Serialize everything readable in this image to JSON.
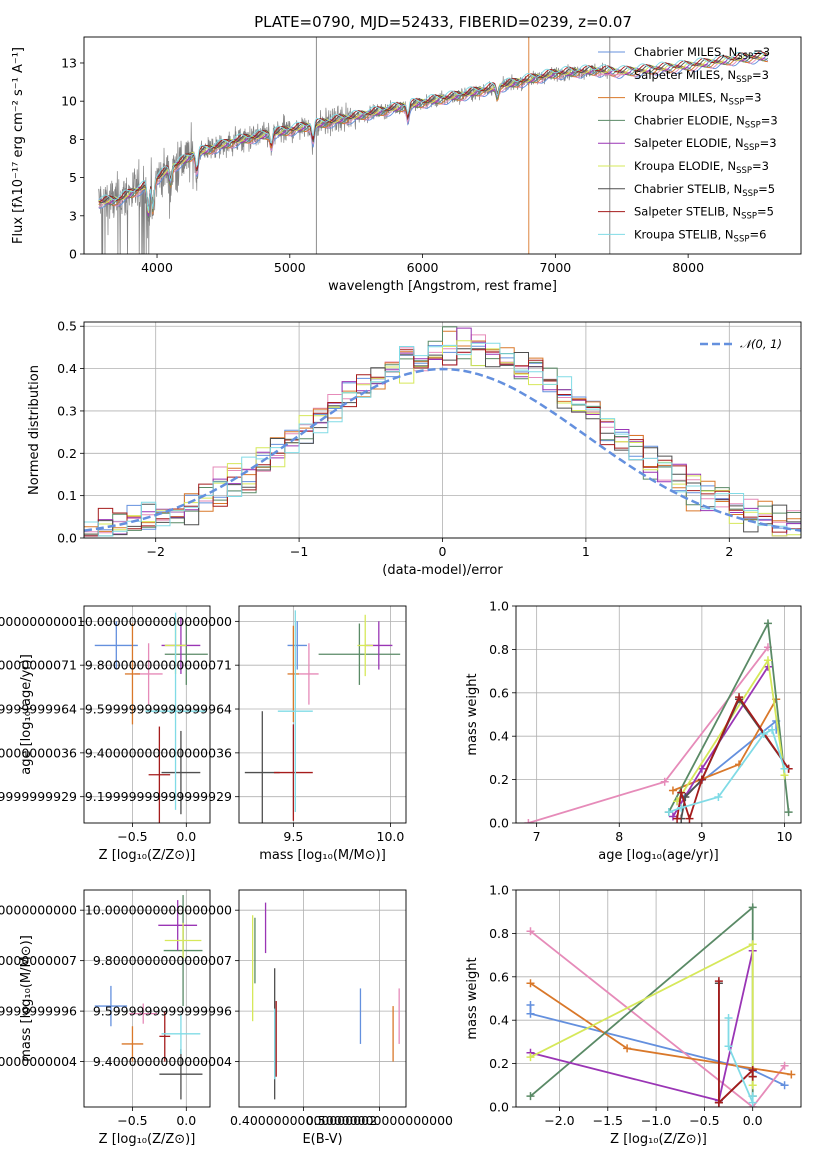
{
  "figure_title": "PLATE=0790, MJD=52433, FIBERID=0239, z=0.07",
  "models": [
    {
      "label": "Chabrier MILES, N_SSP=3",
      "lname": "Chabrier MILES, N",
      "nssp": "=3",
      "color": "#6490de"
    },
    {
      "label": "Salpeter MILES, N_SSP=3",
      "lname": "Salpeter MILES, N",
      "nssp": "=3",
      "color": "#e68bb9"
    },
    {
      "label": "Kroupa MILES, N_SSP=3",
      "lname": "Kroupa MILES, N",
      "nssp": "=3",
      "color": "#d9782a"
    },
    {
      "label": "Chabrier ELODIE, N_SSP=3",
      "lname": "Chabrier ELODIE, N",
      "nssp": "=3",
      "color": "#5a8a66"
    },
    {
      "label": "Salpeter ELODIE, N_SSP=3",
      "lname": "Salpeter ELODIE, N",
      "nssp": "=3",
      "color": "#9a35b5"
    },
    {
      "label": "Kroupa ELODIE, N_SSP=3",
      "lname": "Kroupa ELODIE, N",
      "nssp": "=3",
      "color": "#d6e85a"
    },
    {
      "label": "Chabrier STELIB, N_SSP=5",
      "lname": "Chabrier STELIB, N",
      "nssp": "=5",
      "color": "#4f4f4f"
    },
    {
      "label": "Salpeter STELIB, N_SSP=5",
      "lname": "Salpeter STELIB, N",
      "nssp": "=5",
      "color": "#a51c1c"
    },
    {
      "label": "Kroupa STELIB, N_SSP=6",
      "lname": "Kroupa STELIB, N",
      "nssp": "=6",
      "color": "#80dbe6"
    }
  ],
  "legend_sub": "SSP",
  "chart_data": [
    {
      "id": "spectrum",
      "type": "line",
      "xlabel": "wavelength [Angstrom, rest frame]",
      "ylabel": "Flux [fλ10⁻¹⁷ erg cm⁻² s⁻¹ A⁻¹]",
      "xlim": [
        3450,
        8850
      ],
      "ylim": [
        0,
        14.2
      ],
      "xticks": [
        4000,
        5000,
        6000,
        7000,
        8000
      ],
      "yticks": [
        0.0,
        2.5,
        5.0,
        7.5,
        10.0,
        12.5
      ],
      "data_color": "#808080",
      "continuum": [
        [
          3550,
          3.4
        ],
        [
          3700,
          3.5
        ],
        [
          3950,
          4.6
        ],
        [
          4100,
          5.6
        ],
        [
          4300,
          6.6
        ],
        [
          4600,
          7.4
        ],
        [
          5000,
          8.1
        ],
        [
          5500,
          9.0
        ],
        [
          6000,
          9.9
        ],
        [
          6300,
          10.4
        ],
        [
          6600,
          11.0
        ],
        [
          6800,
          11.4
        ],
        [
          7000,
          11.8
        ],
        [
          7300,
          12.0
        ],
        [
          7500,
          11.9
        ],
        [
          8000,
          12.3
        ],
        [
          8400,
          12.8
        ],
        [
          8600,
          12.9
        ]
      ]
    },
    {
      "id": "residual_hist",
      "type": "line",
      "xlabel": "(data-model)/error",
      "ylabel": "Normed distribution",
      "xlim": [
        -2.5,
        2.5
      ],
      "ylim": [
        0,
        0.51
      ],
      "xticks": [
        -2,
        -1,
        0,
        1,
        2
      ],
      "yticks": [
        0.0,
        0.1,
        0.2,
        0.3,
        0.4,
        0.5
      ],
      "reference_label": "𝒩(0, 1)",
      "reference_color": "#6490de",
      "bin_width": 0.1
    },
    {
      "id": "age_vs_Z",
      "type": "scatter",
      "xlabel": "Z [log₁₀(Z/Z⊙)]",
      "ylabel": "age  [log₁₀(age/yr)]",
      "xlim": [
        -0.95,
        0.22
      ],
      "ylim": [
        9.08,
        10.07
      ],
      "xticks": [
        -0.5,
        0.0
      ],
      "yticks": [
        9.2,
        9.4,
        9.6,
        9.8,
        10.0
      ],
      "points": [
        {
          "x": -0.65,
          "y": 9.89,
          "xerr": 0.2,
          "yerr": 0.11
        },
        {
          "x": -0.35,
          "y": 9.76,
          "xerr": 0.13,
          "yerr": 0.14
        },
        {
          "x": -0.5,
          "y": 9.76,
          "xerr": 0.07,
          "yerr": 0.23
        },
        {
          "x": 0.0,
          "y": 9.85,
          "xerr": 0.2,
          "yerr": 0.14
        },
        {
          "x": -0.05,
          "y": 9.89,
          "xerr": 0.18,
          "yerr": 0.13
        },
        {
          "x": -0.1,
          "y": 9.89,
          "xerr": 0.1,
          "yerr": 0.13
        },
        {
          "x": -0.05,
          "y": 9.31,
          "xerr": 0.18,
          "yerr": 0.19
        },
        {
          "x": -0.25,
          "y": 9.3,
          "xerr": 0.1,
          "yerr": 0.22
        },
        {
          "x": -0.1,
          "y": 9.59,
          "xerr": 0.28,
          "yerr": 0.45
        }
      ]
    },
    {
      "id": "age_vs_mass",
      "type": "scatter",
      "xlabel": "mass [log₁₀(M/M⊙)]",
      "ylabel": "",
      "xlim": [
        9.22,
        10.08
      ],
      "ylim": [
        9.08,
        10.07
      ],
      "xticks": [
        9.5,
        10.0
      ],
      "yticks": [
        9.2,
        9.4,
        9.6,
        9.8,
        10.0
      ],
      "points": [
        {
          "x": 9.52,
          "y": 9.89,
          "xerr": 0.05,
          "yerr": 0.11
        },
        {
          "x": 9.58,
          "y": 9.76,
          "xerr": 0.05,
          "yerr": 0.14
        },
        {
          "x": 9.5,
          "y": 9.76,
          "xerr": 0.03,
          "yerr": 0.22
        },
        {
          "x": 9.84,
          "y": 9.85,
          "xerr": 0.21,
          "yerr": 0.14
        },
        {
          "x": 9.94,
          "y": 9.89,
          "xerr": 0.07,
          "yerr": 0.11
        },
        {
          "x": 9.87,
          "y": 9.89,
          "xerr": 0.04,
          "yerr": 0.14
        },
        {
          "x": 9.34,
          "y": 9.31,
          "xerr": 0.09,
          "yerr": 0.28
        },
        {
          "x": 9.5,
          "y": 9.31,
          "xerr": 0.1,
          "yerr": 0.22
        },
        {
          "x": 9.51,
          "y": 9.59,
          "xerr": 0.09,
          "yerr": 0.46
        }
      ]
    },
    {
      "id": "weight_vs_age",
      "type": "line",
      "xlabel": "age  [log₁₀(age/yr)]",
      "ylabel": "mass weight",
      "xlim": [
        6.75,
        10.2
      ],
      "ylim": [
        0,
        1.0
      ],
      "xticks": [
        7,
        8,
        9,
        10
      ],
      "yticks": [
        0.0,
        0.2,
        0.4,
        0.6,
        0.8,
        1.0
      ],
      "series": [
        [
          [
            8.7,
            0.1
          ],
          [
            9.9,
            0.47
          ],
          [
            9.9,
            0.43
          ]
        ],
        [
          [
            6.9,
            0.0
          ],
          [
            8.55,
            0.19
          ],
          [
            9.8,
            0.81
          ]
        ],
        [
          [
            8.65,
            0.15
          ],
          [
            9.45,
            0.27
          ],
          [
            9.9,
            0.57
          ]
        ],
        [
          [
            8.6,
            0.05
          ],
          [
            9.8,
            0.92
          ],
          [
            10.05,
            0.05
          ]
        ],
        [
          [
            8.65,
            0.03
          ],
          [
            9.0,
            0.25
          ],
          [
            9.8,
            0.72
          ]
        ],
        [
          [
            8.7,
            0.1
          ],
          [
            9.8,
            0.75
          ],
          [
            10.0,
            0.22
          ]
        ],
        [
          [
            8.75,
            0.02
          ],
          [
            8.8,
            0.12
          ],
          [
            9.0,
            0.2
          ],
          [
            9.45,
            0.57
          ],
          [
            10.05,
            0.25
          ]
        ],
        [
          [
            8.7,
            0.02
          ],
          [
            8.75,
            0.14
          ],
          [
            8.85,
            0.02
          ],
          [
            9.0,
            0.2
          ],
          [
            9.45,
            0.58
          ],
          [
            10.05,
            0.25
          ]
        ],
        [
          [
            8.6,
            0.05
          ],
          [
            8.75,
            0.07
          ],
          [
            9.2,
            0.12
          ],
          [
            9.75,
            0.41
          ],
          [
            9.85,
            0.43
          ],
          [
            10.0,
            0.25
          ]
        ]
      ]
    },
    {
      "id": "mass_vs_Z",
      "type": "scatter",
      "xlabel": "Z [log₁₀(Z/Z⊙)]",
      "ylabel": "mass [log₁₀(M/M⊙)]",
      "xlim": [
        -0.95,
        0.22
      ],
      "ylim": [
        9.22,
        10.08
      ],
      "xticks": [
        -0.5,
        0.0
      ],
      "yticks": [
        9.4,
        9.6,
        9.8,
        10.0
      ],
      "points": [
        {
          "x": -0.7,
          "y": 9.62,
          "xerr": 0.15,
          "yerr": 0.08
        },
        {
          "x": -0.4,
          "y": 9.59,
          "xerr": 0.13,
          "yerr": 0.04
        },
        {
          "x": -0.5,
          "y": 9.47,
          "xerr": 0.1,
          "yerr": 0.07
        },
        {
          "x": -0.03,
          "y": 9.84,
          "xerr": 0.18,
          "yerr": 0.22
        },
        {
          "x": -0.08,
          "y": 9.94,
          "xerr": 0.18,
          "yerr": 0.1
        },
        {
          "x": -0.03,
          "y": 9.88,
          "xerr": 0.17,
          "yerr": 0.07
        },
        {
          "x": -0.05,
          "y": 9.35,
          "xerr": 0.2,
          "yerr": 0.1
        },
        {
          "x": -0.2,
          "y": 9.5,
          "xerr": 0.05,
          "yerr": 0.1
        },
        {
          "x": -0.05,
          "y": 9.51,
          "xerr": 0.18,
          "yerr": 0.08
        }
      ]
    },
    {
      "id": "mass_vs_EBV",
      "type": "scatter",
      "xlabel": "E(B-V)",
      "ylabel": "",
      "xlim": [
        0.315,
        0.535
      ],
      "ylim": [
        9.22,
        10.08
      ],
      "xticks": [
        0.4,
        0.5
      ],
      "yticks": [
        9.4,
        9.6,
        9.8,
        10.0
      ],
      "points": [
        {
          "x": 0.475,
          "y": 9.58,
          "yerr": 0.11
        },
        {
          "x": 0.526,
          "y": 9.58,
          "yerr": 0.11
        },
        {
          "x": 0.518,
          "y": 9.51,
          "yerr": 0.11
        },
        {
          "x": 0.336,
          "y": 9.84,
          "yerr": 0.13
        },
        {
          "x": 0.35,
          "y": 9.93,
          "yerr": 0.1
        },
        {
          "x": 0.333,
          "y": 9.77,
          "yerr": 0.21
        },
        {
          "x": 0.362,
          "y": 9.51,
          "yerr": 0.26
        },
        {
          "x": 0.364,
          "y": 9.49,
          "yerr": 0.15
        },
        {
          "x": 0.362,
          "y": 9.47,
          "yerr": 0.14
        }
      ]
    },
    {
      "id": "weight_vs_Z",
      "type": "line",
      "xlabel": "Z [log₁₀(Z/Z⊙)]",
      "ylabel": "mass weight",
      "xlim": [
        -2.45,
        0.5
      ],
      "ylim": [
        0,
        1.0
      ],
      "xticks": [
        -2.0,
        -1.5,
        -1.0,
        -0.5,
        0.0
      ],
      "yticks": [
        0.0,
        0.2,
        0.4,
        0.6,
        0.8,
        1.0
      ],
      "series": [
        [
          [
            -2.3,
            0.47
          ],
          [
            -2.3,
            0.43
          ],
          [
            0.0,
            0.17
          ],
          [
            0.33,
            0.1
          ]
        ],
        [
          [
            -2.3,
            0.81
          ],
          [
            0.0,
            0.0
          ],
          [
            0.33,
            0.19
          ]
        ],
        [
          [
            -2.3,
            0.57
          ],
          [
            -1.3,
            0.27
          ],
          [
            0.4,
            0.15
          ]
        ],
        [
          [
            -2.3,
            0.05
          ],
          [
            0.0,
            0.92
          ],
          [
            0.0,
            0.05
          ]
        ],
        [
          [
            -2.3,
            0.25
          ],
          [
            -0.35,
            0.03
          ],
          [
            0.0,
            0.72
          ]
        ],
        [
          [
            -2.3,
            0.23
          ],
          [
            0.0,
            0.75
          ],
          [
            0.0,
            0.1
          ]
        ],
        [
          [
            -0.35,
            0.57
          ],
          [
            -0.35,
            0.02
          ],
          [
            0.0,
            0.17
          ],
          [
            0.0,
            0.14
          ]
        ],
        [
          [
            -0.35,
            0.58
          ],
          [
            -0.35,
            0.02
          ],
          [
            0.0,
            0.17
          ],
          [
            0.0,
            0.14
          ]
        ],
        [
          [
            -0.25,
            0.41
          ],
          [
            -0.25,
            0.28
          ],
          [
            0.0,
            0.02
          ],
          [
            0.0,
            0.05
          ]
        ]
      ]
    }
  ]
}
